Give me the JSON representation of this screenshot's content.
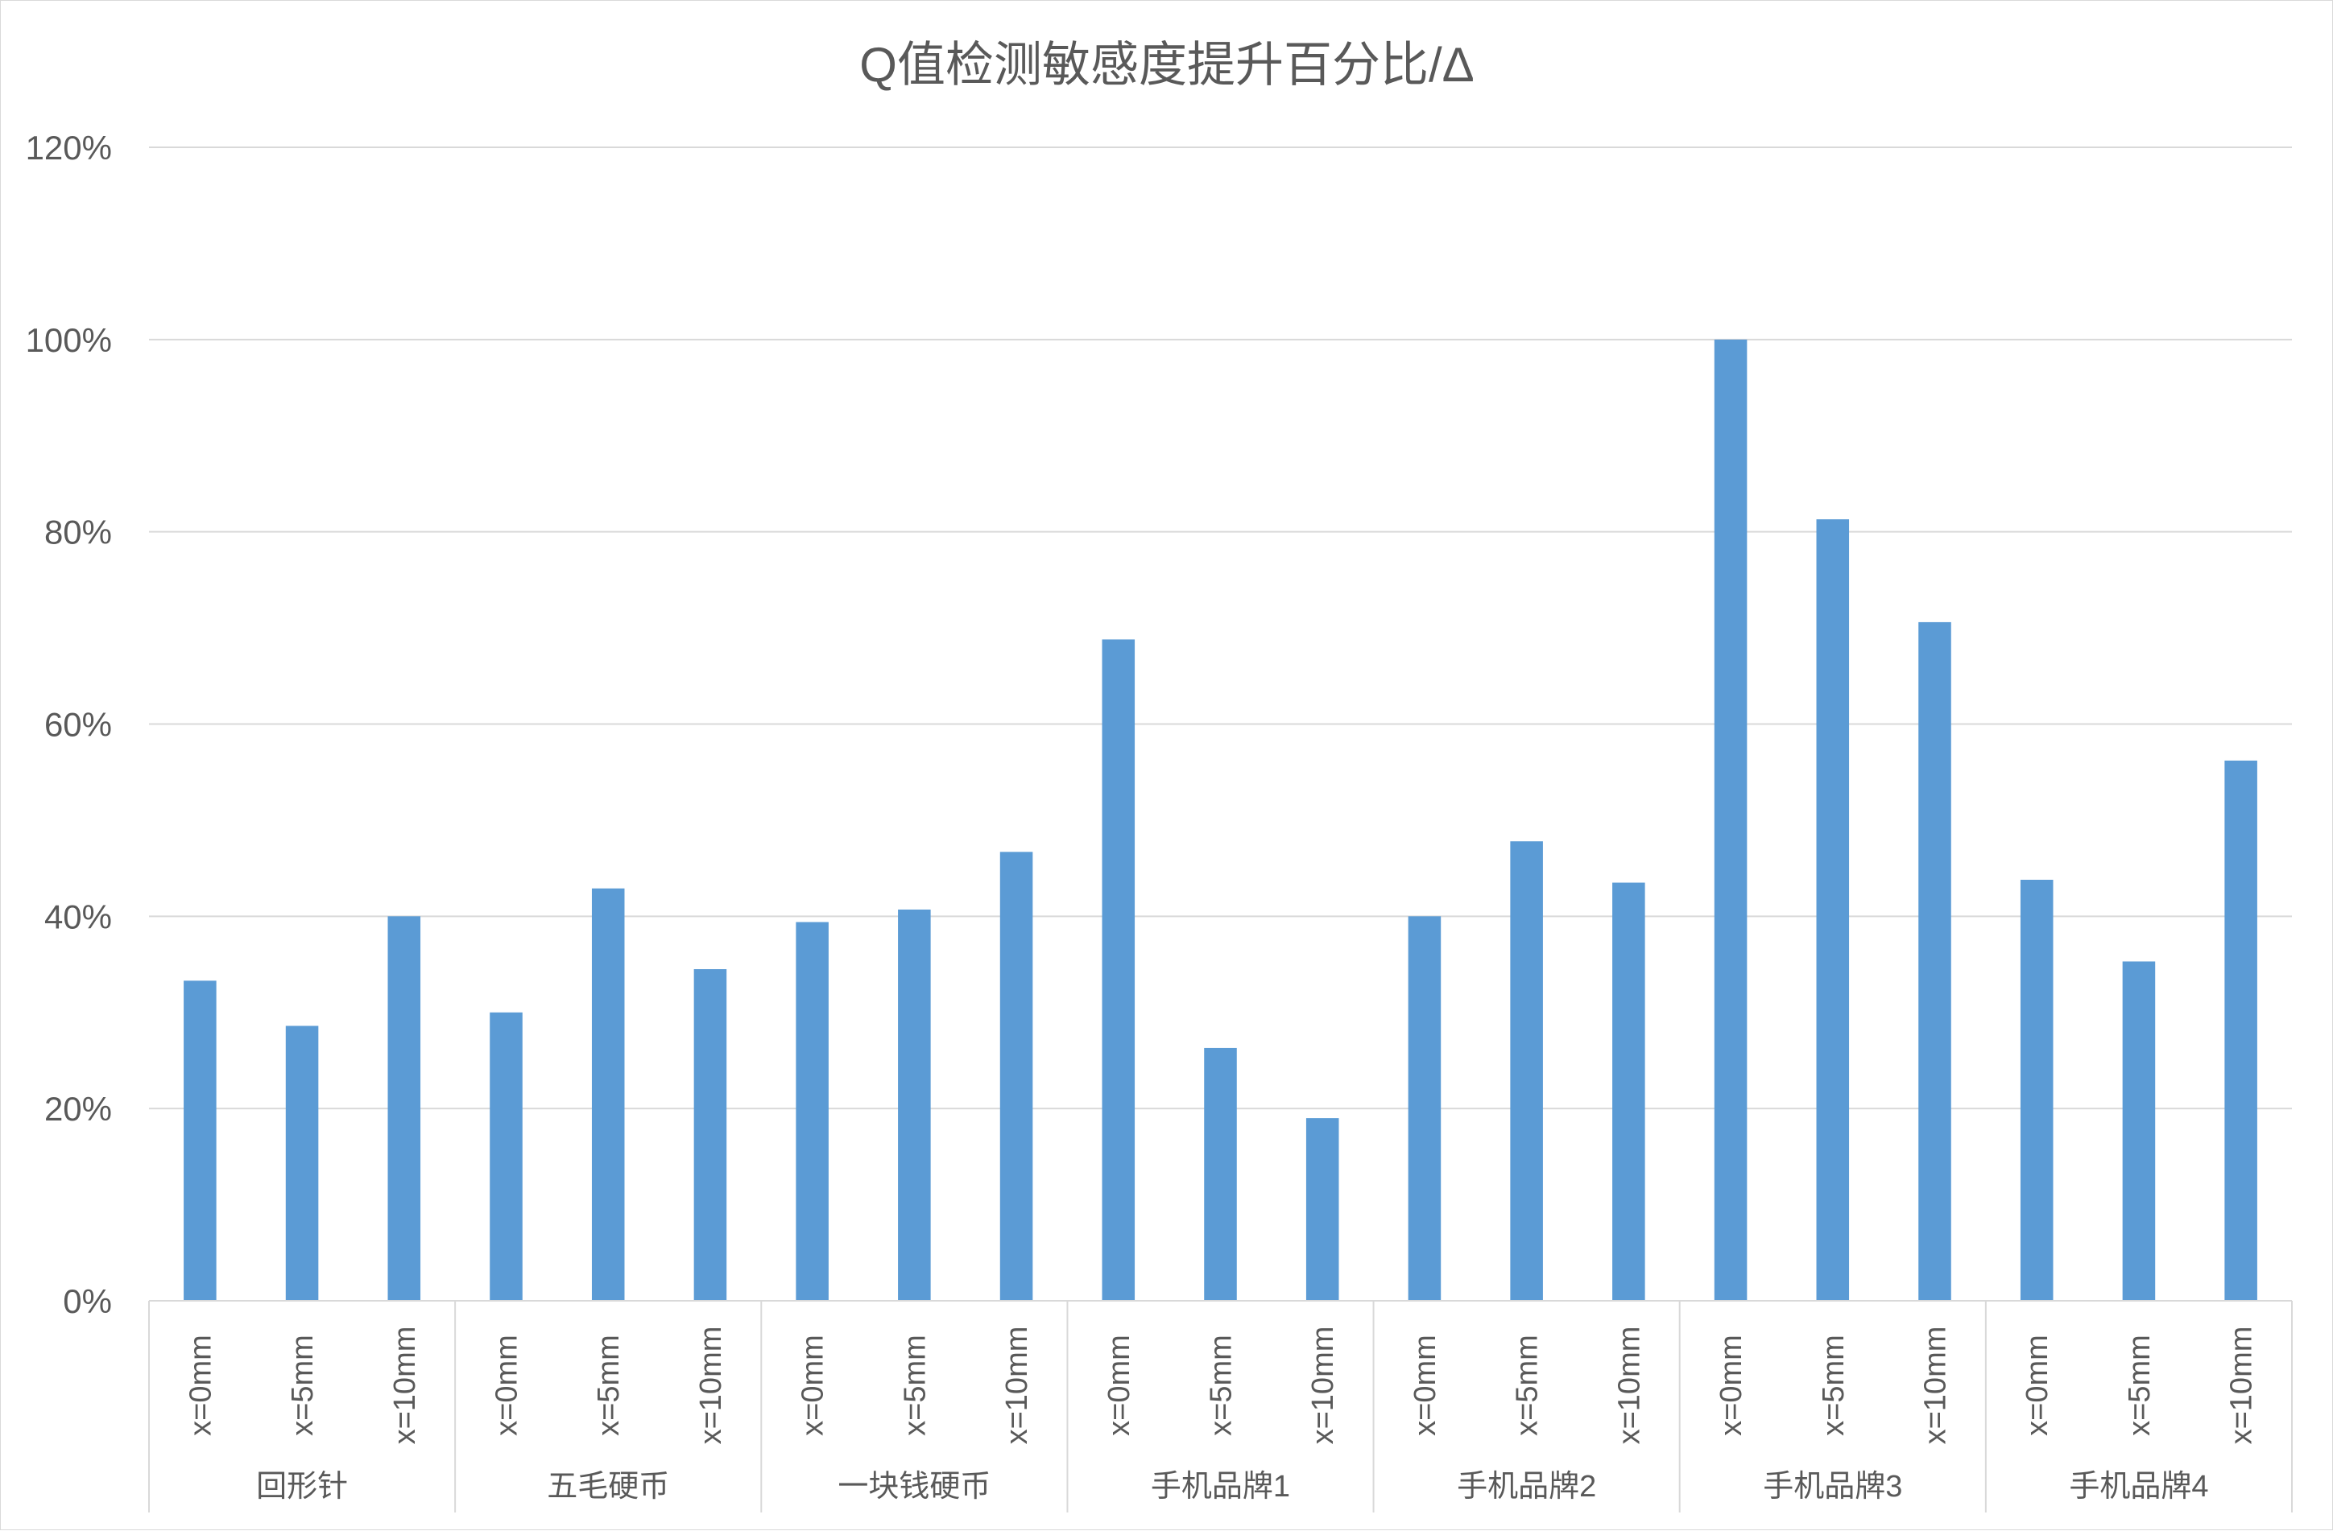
{
  "chart_data": {
    "type": "bar",
    "title": "Q值检测敏感度提升百分比/Δ",
    "xlabel": "",
    "ylabel": "",
    "ylim": [
      0,
      1.2
    ],
    "y_ticks": [
      "0%",
      "20%",
      "40%",
      "60%",
      "80%",
      "100%",
      "120%"
    ],
    "grid": true,
    "legend": "none",
    "bar_color": "#5b9bd5",
    "groups": [
      "回形针",
      "五毛硬币",
      "一块钱硬币",
      "手机品牌1",
      "手机品牌2",
      "手机品牌3",
      "手机品牌4"
    ],
    "sub_categories": [
      "x=0mm",
      "x=5mm",
      "x=10mm"
    ],
    "values": [
      [
        0.333,
        0.286,
        0.4
      ],
      [
        0.3,
        0.429,
        0.345
      ],
      [
        0.394,
        0.407,
        0.467
      ],
      [
        0.688,
        0.263,
        0.19
      ],
      [
        0.4,
        0.478,
        0.435
      ],
      [
        1.0,
        0.813,
        0.706
      ],
      [
        0.438,
        0.353,
        0.562
      ]
    ]
  }
}
